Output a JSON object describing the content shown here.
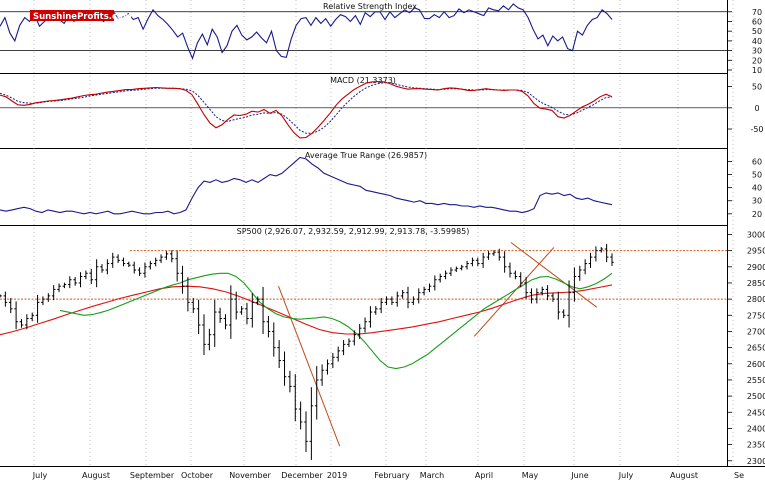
{
  "brand": {
    "part1": "Sunshine",
    "part2": "Profits",
    "suffix": ".com",
    "color1": "#cc0000",
    "color2": "#ffffff",
    "bg": "#cc0000"
  },
  "colors": {
    "indicator_line": "#1a1a8c",
    "macd_signal": "#c00000",
    "price_bars": "#000000",
    "ma_short": "#1a9c1a",
    "ma_long": "#dd1111",
    "trendline": "#c04a1a",
    "hline": "#d25a1a",
    "grid": "#999999",
    "axis_text": "#111111"
  },
  "x_axis_months": [
    "July",
    "August",
    "September",
    "October",
    "November",
    "December",
    "2019",
    "February",
    "March",
    "April",
    "May",
    "June",
    "July",
    "August",
    "Se"
  ],
  "chart_data": [
    {
      "type": "line",
      "title": "Relative Strength Index",
      "y_ticks": [
        10,
        20,
        30,
        40,
        50,
        60,
        70
      ],
      "ylim": [
        10,
        78
      ],
      "levels": [
        30,
        70
      ],
      "series": [
        {
          "values": [
            55,
            64,
            48,
            40,
            56,
            64,
            60,
            67,
            55,
            60,
            66,
            63,
            62,
            58,
            67,
            60,
            66,
            65,
            67,
            62,
            64,
            60,
            65,
            70,
            63,
            65,
            68,
            62,
            64,
            52,
            63,
            72,
            66,
            62,
            57,
            51,
            44,
            48,
            34,
            22,
            38,
            47,
            36,
            52,
            44,
            28,
            35,
            50,
            56,
            46,
            41,
            44,
            49,
            43,
            38,
            50,
            30,
            24,
            23,
            42,
            56,
            63,
            64,
            56,
            64,
            58,
            63,
            55,
            62,
            67,
            65,
            60,
            66,
            57,
            69,
            65,
            70,
            70,
            62,
            70,
            64,
            68,
            72,
            69,
            74,
            72,
            63,
            63,
            67,
            64,
            70,
            64,
            66,
            73,
            69,
            72,
            70,
            68,
            66,
            74,
            72,
            71,
            76,
            72,
            78,
            74,
            72,
            64,
            52,
            42,
            46,
            35,
            45,
            40,
            44,
            32,
            30,
            50,
            46,
            56,
            62,
            64,
            72,
            68,
            62
          ]
        }
      ]
    },
    {
      "type": "line",
      "title": "MACD (21.3373)",
      "y_ticks": [
        -50,
        0,
        50
      ],
      "ylim": [
        -90,
        75
      ],
      "levels": [
        0
      ],
      "series": [
        {
          "values": [
            30,
            26,
            16,
            7,
            6,
            8,
            12,
            14,
            16,
            17,
            19,
            21,
            23,
            26,
            29,
            31,
            32,
            35,
            37,
            39,
            41,
            43,
            43,
            45,
            46,
            47,
            48,
            47,
            46,
            46,
            45,
            41,
            31,
            8,
            -16,
            -36,
            -47,
            -40,
            -27,
            -17,
            -18,
            -15,
            -8,
            -10,
            -4,
            -13,
            -6,
            -19,
            -40,
            -59,
            -71,
            -70,
            -60,
            -46,
            -30,
            -13,
            6,
            21,
            32,
            43,
            51,
            58,
            61,
            62,
            61,
            57,
            51,
            47,
            44,
            45,
            45,
            44,
            43,
            42,
            45,
            47,
            46,
            44,
            41,
            41,
            43,
            45,
            43,
            42,
            41,
            42,
            42,
            39,
            28,
            10,
            -1,
            -3,
            -6,
            -21,
            -24,
            -18,
            -8,
            2,
            8,
            16,
            26,
            32,
            26
          ]
        },
        {
          "values": [
            34,
            30,
            23,
            15,
            12,
            11,
            11,
            13,
            15,
            16,
            17,
            19,
            21,
            23,
            25,
            28,
            30,
            32,
            34,
            36,
            38,
            40,
            41,
            42,
            44,
            45,
            46,
            46,
            46,
            46,
            45,
            44,
            40,
            29,
            13,
            -4,
            -21,
            -30,
            -32,
            -28,
            -25,
            -22,
            -17,
            -15,
            -12,
            -13,
            -11,
            -15,
            -26,
            -39,
            -53,
            -60,
            -60,
            -55,
            -46,
            -33,
            -17,
            0,
            14,
            27,
            38,
            47,
            53,
            57,
            59,
            59,
            56,
            52,
            49,
            47,
            46,
            45,
            44,
            43,
            44,
            45,
            45,
            44,
            43,
            42,
            42,
            43,
            43,
            42,
            42,
            42,
            42,
            41,
            36,
            25,
            14,
            7,
            1,
            -8,
            -15,
            -17,
            -13,
            -6,
            1,
            8,
            17,
            24,
            26
          ]
        }
      ]
    },
    {
      "type": "line",
      "title": "Average True Range (26.9857)",
      "y_ticks": [
        20,
        30,
        40,
        50,
        60
      ],
      "ylim": [
        13,
        68
      ],
      "series": [
        {
          "values": [
            23,
            22,
            23,
            24,
            25,
            24,
            22,
            21,
            23,
            22,
            21,
            22,
            22,
            21,
            20,
            21,
            20,
            21,
            22,
            20,
            20,
            21,
            22,
            21,
            20,
            20,
            21,
            21,
            22,
            20,
            21,
            23,
            32,
            40,
            45,
            44,
            46,
            44,
            45,
            47,
            46,
            44,
            46,
            44,
            47,
            50,
            49,
            51,
            55,
            59,
            63,
            62,
            58,
            55,
            51,
            49,
            47,
            45,
            43,
            42,
            41,
            38,
            37,
            36,
            35,
            34,
            32,
            31,
            30,
            29,
            30,
            28,
            28,
            27,
            28,
            27,
            27,
            26,
            26,
            25,
            26,
            25,
            25,
            24,
            23,
            22,
            22,
            21,
            22,
            24,
            34,
            36,
            35,
            36,
            34,
            35,
            32,
            31,
            32,
            30,
            29,
            28,
            27
          ]
        }
      ]
    },
    {
      "type": "bar",
      "title": "SP500 (2,926.07, 2,932.59, 2,912.99, 2,913.78, -3.59985)",
      "y_ticks": [
        2300,
        2350,
        2400,
        2450,
        2500,
        2550,
        2600,
        2650,
        2700,
        2750,
        2800,
        2850,
        2900,
        2950,
        3000
      ],
      "ylim": [
        2290,
        3020
      ],
      "levels": [
        2950,
        2800
      ],
      "series": [
        {
          "name": "close",
          "values": [
            2810,
            2790,
            2770,
            2730,
            2720,
            2740,
            2750,
            2790,
            2800,
            2810,
            2830,
            2840,
            2845,
            2860,
            2850,
            2870,
            2880,
            2860,
            2900,
            2890,
            2910,
            2930,
            2920,
            2910,
            2905,
            2890,
            2880,
            2900,
            2910,
            2920,
            2930,
            2940,
            2925,
            2880,
            2840,
            2790,
            2770,
            2720,
            2660,
            2690,
            2760,
            2740,
            2720,
            2800,
            2760,
            2770,
            2740,
            2790,
            2800,
            2730,
            2700,
            2650,
            2610,
            2560,
            2530,
            2460,
            2420,
            2360,
            2470,
            2550,
            2580,
            2600,
            2620,
            2640,
            2660,
            2670,
            2690,
            2710,
            2730,
            2760,
            2770,
            2790,
            2800,
            2790,
            2810,
            2820,
            2790,
            2800,
            2820,
            2830,
            2840,
            2860,
            2870,
            2880,
            2890,
            2895,
            2900,
            2910,
            2920,
            2910,
            2930,
            2940,
            2945,
            2930,
            2900,
            2880,
            2870,
            2850,
            2820,
            2800,
            2820,
            2830,
            2810,
            2800,
            2760,
            2750,
            2820,
            2870,
            2890,
            2910,
            2930,
            2950,
            2955,
            2930,
            2914
          ]
        },
        {
          "name": "moving average (short)",
          "values": [
            2765,
            2760,
            2755,
            2750,
            2752,
            2758,
            2765,
            2775,
            2785,
            2795,
            2805,
            2815,
            2825,
            2835,
            2843,
            2850,
            2860,
            2866,
            2872,
            2877,
            2880,
            2880,
            2870,
            2850,
            2820,
            2790,
            2770,
            2755,
            2745,
            2740,
            2738,
            2740,
            2742,
            2745,
            2740,
            2730,
            2715,
            2695,
            2670,
            2640,
            2610,
            2590,
            2585,
            2590,
            2600,
            2615,
            2630,
            2650,
            2670,
            2690,
            2710,
            2730,
            2750,
            2770,
            2785,
            2800,
            2815,
            2830,
            2845,
            2860,
            2868,
            2870,
            2862,
            2850,
            2838,
            2832,
            2838,
            2848,
            2862,
            2880
          ]
        },
        {
          "name": "moving average (long)",
          "values": [
            2690,
            2700,
            2712,
            2725,
            2738,
            2752,
            2765,
            2778,
            2790,
            2802,
            2812,
            2822,
            2832,
            2838,
            2840,
            2838,
            2832,
            2822,
            2808,
            2792,
            2775,
            2758,
            2740,
            2722,
            2706,
            2696,
            2692,
            2692,
            2696,
            2702,
            2708,
            2714,
            2722,
            2730,
            2740,
            2750,
            2760,
            2772,
            2786,
            2800,
            2812,
            2818,
            2820,
            2822,
            2828,
            2836,
            2844
          ]
        }
      ]
    }
  ]
}
